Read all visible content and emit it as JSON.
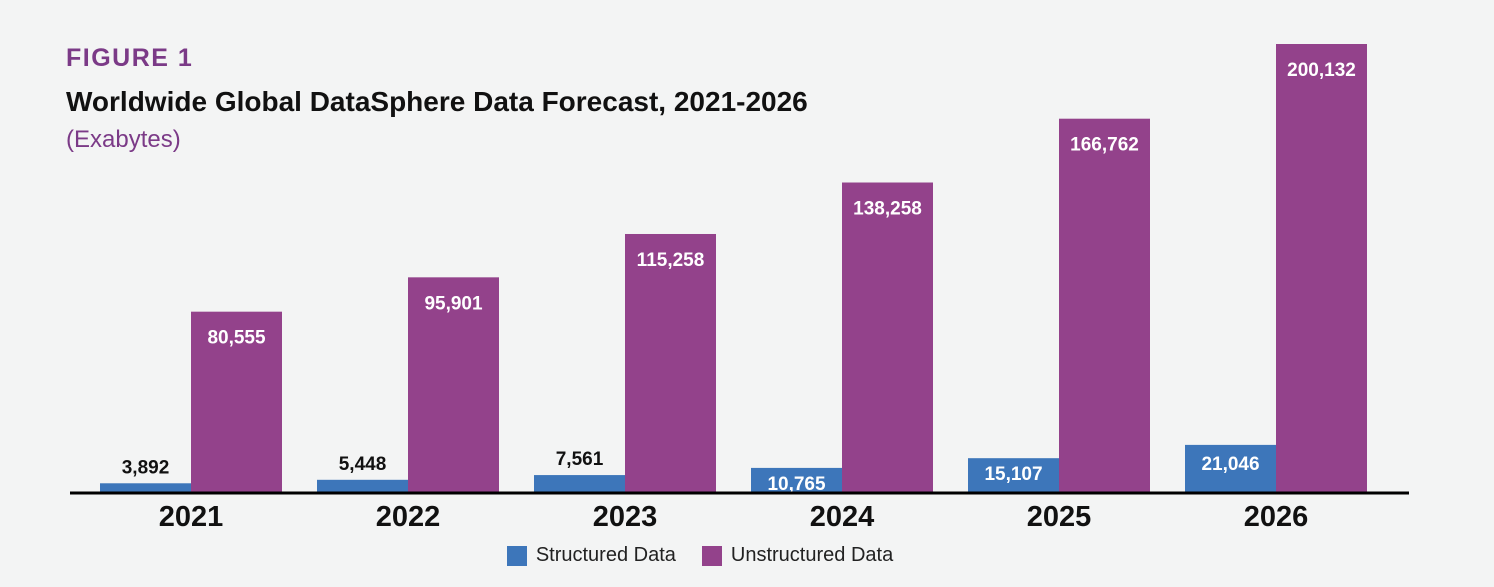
{
  "figure": {
    "label": "FIGURE 1",
    "title": "Worldwide Global DataSphere Data Forecast, 2021-2026",
    "subtitle": "(Exabytes)"
  },
  "chart_data": {
    "type": "bar",
    "title": "Worldwide Global DataSphere Data Forecast, 2021-2026",
    "subtitle": "(Exabytes)",
    "categories": [
      "2021",
      "2022",
      "2023",
      "2024",
      "2025",
      "2026"
    ],
    "series": [
      {
        "name": "Structured Data",
        "color": "#3d76ba",
        "values": [
          3892,
          5448,
          7561,
          10765,
          15107,
          21046
        ],
        "labels": [
          "3,892",
          "5,448",
          "7,561",
          "10,765",
          "15,107",
          "21,046"
        ]
      },
      {
        "name": "Unstructured Data",
        "color": "#93428b",
        "values": [
          80555,
          95901,
          115258,
          138258,
          166762,
          200132
        ],
        "labels": [
          "80,555",
          "95,901",
          "115,258",
          "138,258",
          "166,762",
          "200,132"
        ]
      }
    ],
    "ylim": [
      0,
      200132
    ],
    "grid": false,
    "legend_position": "bottom"
  }
}
